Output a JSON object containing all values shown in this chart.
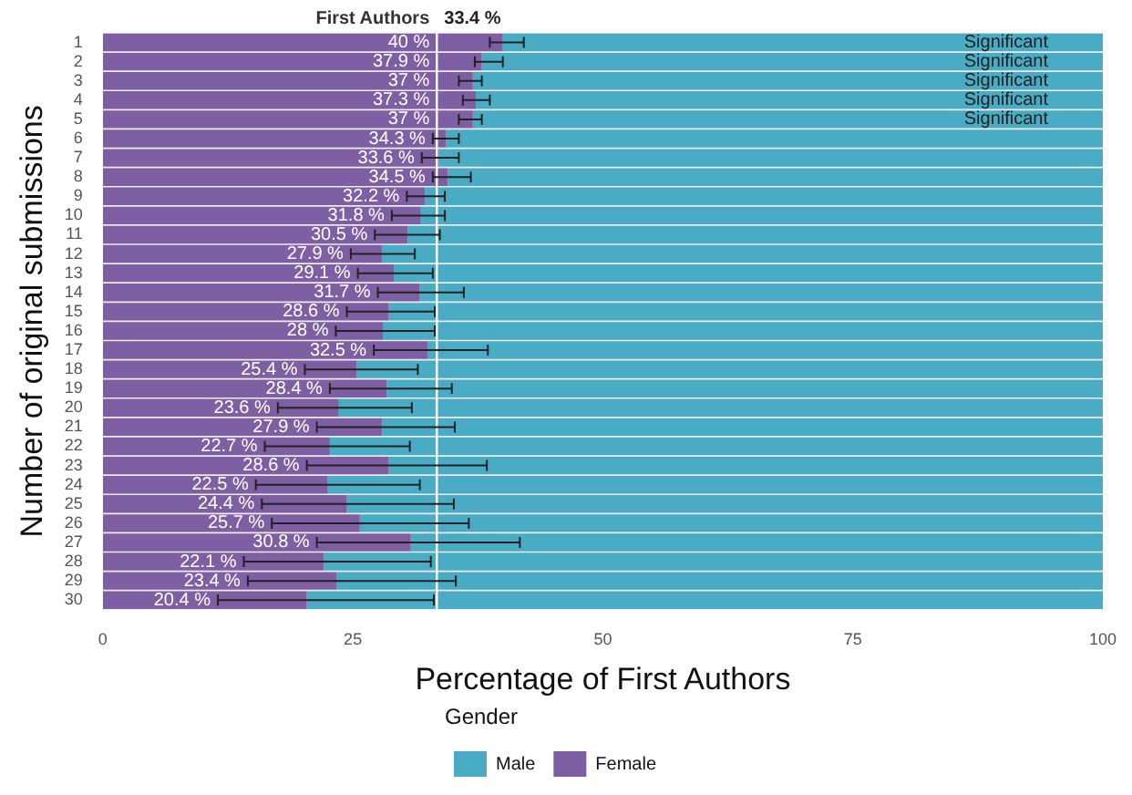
{
  "chart_data": {
    "type": "bar",
    "orientation": "horizontal",
    "stacked": true,
    "xlabel": "Percentage of First Authors",
    "ylabel": "Number of original submissions",
    "legend_title": "Gender",
    "legend": "bottom",
    "categories": [
      "1",
      "2",
      "3",
      "4",
      "5",
      "6",
      "7",
      "8",
      "9",
      "10",
      "11",
      "12",
      "13",
      "14",
      "15",
      "16",
      "17",
      "18",
      "19",
      "20",
      "21",
      "22",
      "23",
      "24",
      "25",
      "26",
      "27",
      "28",
      "29",
      "30"
    ],
    "xlim": [
      0,
      100
    ],
    "xticks": [
      0,
      25,
      50,
      75,
      100
    ],
    "series": [
      {
        "name": "Female",
        "color": "#7f5fa3",
        "values": [
          40,
          37.9,
          37,
          37.3,
          37,
          34.3,
          33.6,
          34.5,
          32.2,
          31.8,
          30.5,
          27.9,
          29.1,
          31.7,
          28.6,
          28,
          32.5,
          25.4,
          28.4,
          23.6,
          27.9,
          22.7,
          28.6,
          22.5,
          24.4,
          25.7,
          30.8,
          22.1,
          23.4,
          20.4
        ],
        "value_labels": [
          "40 %",
          "37.9 %",
          "37 %",
          "37.3 %",
          "37 %",
          "34.3 %",
          "33.6 %",
          "34.5 %",
          "32.2 %",
          "31.8 %",
          "30.5 %",
          "27.9 %",
          "29.1 %",
          "31.7 %",
          "28.6 %",
          "28 %",
          "32.5 %",
          "25.4 %",
          "28.4 %",
          "23.6 %",
          "27.9 %",
          "22.7 %",
          "28.6 %",
          "22.5 %",
          "24.4 %",
          "25.7 %",
          "30.8 %",
          "22.1 %",
          "23.4 %",
          "20.4 %"
        ],
        "errors": [
          [
            38.7,
            42.1
          ],
          [
            37.2,
            40
          ],
          [
            35.6,
            37.9
          ],
          [
            36,
            38.7
          ],
          [
            35.6,
            37.9
          ],
          [
            33,
            35.6
          ],
          [
            31.9,
            35.6
          ],
          [
            33,
            36.8
          ],
          [
            30.4,
            34.2
          ],
          [
            28.9,
            34.2
          ],
          [
            27.2,
            33.7
          ],
          [
            24.8,
            31.2
          ],
          [
            25.5,
            33
          ],
          [
            27.5,
            36.1
          ],
          [
            24.4,
            33.2
          ],
          [
            23.3,
            33.2
          ],
          [
            27.1,
            38.5
          ],
          [
            20.2,
            31.5
          ],
          [
            22.7,
            34.9
          ],
          [
            17.5,
            30.9
          ],
          [
            21.4,
            35.2
          ],
          [
            16.2,
            30.7
          ],
          [
            20.4,
            38.4
          ],
          [
            15.3,
            31.7
          ],
          [
            15.9,
            35.1
          ],
          [
            16.9,
            36.6
          ],
          [
            21.4,
            41.7
          ],
          [
            14.1,
            32.8
          ],
          [
            14.5,
            35.3
          ],
          [
            11.5,
            33.1
          ]
        ]
      },
      {
        "name": "Male",
        "color": "#4aabc4",
        "values": [
          60,
          62.1,
          63,
          62.7,
          63,
          65.7,
          66.4,
          65.5,
          67.8,
          68.2,
          69.5,
          72.1,
          70.9,
          68.3,
          71.4,
          72,
          67.5,
          74.6,
          71.6,
          76.4,
          72.1,
          77.3,
          71.4,
          77.5,
          75.6,
          74.3,
          69.2,
          77.9,
          76.6,
          79.6
        ]
      }
    ],
    "ref_lines": [
      {
        "axis": "x",
        "value": 33.4,
        "label": "First Authors",
        "color": "#ffffff"
      }
    ],
    "annotations": [
      "33.4 %",
      {
        "text": "Significant",
        "y": "1"
      },
      {
        "text": "Significant",
        "y": "2"
      },
      {
        "text": "Significant",
        "y": "3"
      },
      {
        "text": "Significant",
        "y": "4"
      },
      {
        "text": "Significant",
        "y": "5"
      }
    ]
  }
}
